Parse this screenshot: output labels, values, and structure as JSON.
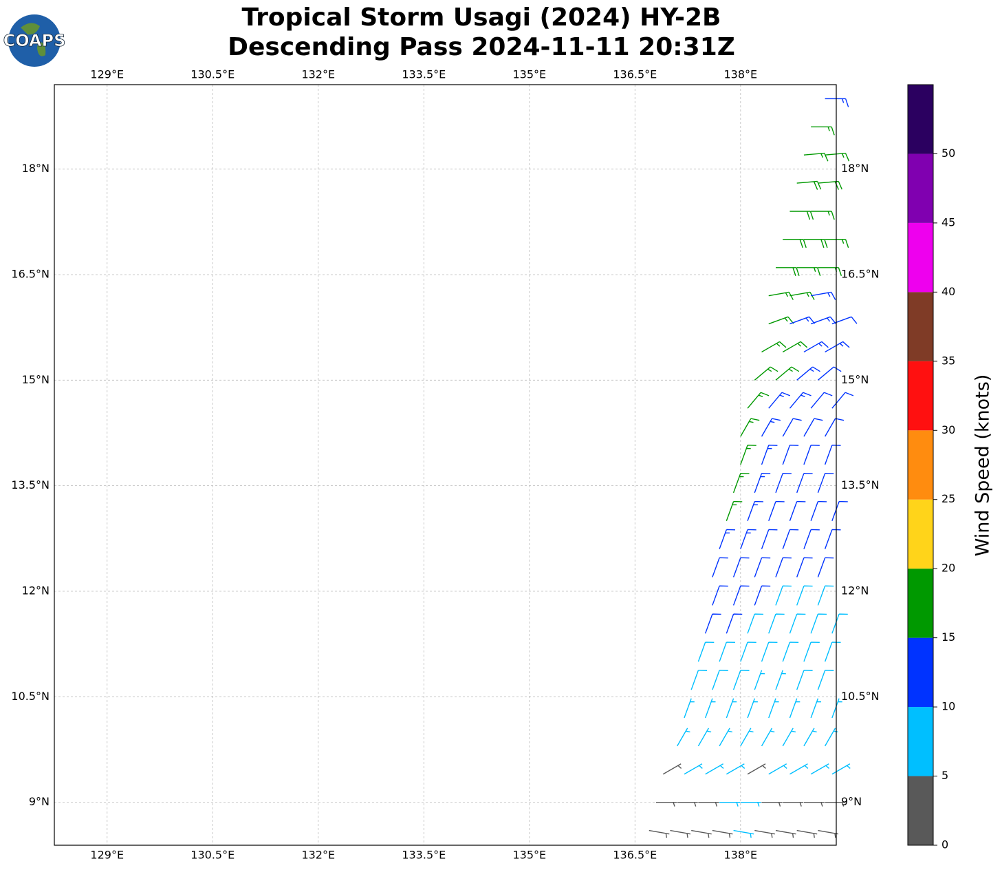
{
  "chart_data": {
    "type": "barb",
    "title": "Tropical Storm Usagi (2024) HY-2B",
    "subtitle": "Descending Pass 2024-11-11 20:31Z",
    "logo_text": "COAPS",
    "xlim": [
      128.25,
      139.36
    ],
    "ylim": [
      8.39,
      19.2
    ],
    "xticks": [
      {
        "value": 129,
        "label": "129°E"
      },
      {
        "value": 130.5,
        "label": "130.5°E"
      },
      {
        "value": 132,
        "label": "132°E"
      },
      {
        "value": 133.5,
        "label": "133.5°E"
      },
      {
        "value": 135,
        "label": "135°E"
      },
      {
        "value": 136.5,
        "label": "136.5°E"
      },
      {
        "value": 138,
        "label": "138°E"
      }
    ],
    "yticks": [
      {
        "value": 9,
        "label": "9°N"
      },
      {
        "value": 10.5,
        "label": "10.5°N"
      },
      {
        "value": 12,
        "label": "12°N"
      },
      {
        "value": 13.5,
        "label": "13.5°N"
      },
      {
        "value": 15,
        "label": "15°N"
      },
      {
        "value": 16.5,
        "label": "16.5°N"
      },
      {
        "value": 18,
        "label": "18°N"
      }
    ],
    "grid": true,
    "barbs": [
      {
        "lat": 19.0,
        "direction": 90,
        "lon": [
          139.2
        ],
        "speed": [
          13
        ]
      },
      {
        "lat": 18.6,
        "direction": 90,
        "lon": [
          139.0
        ],
        "speed": [
          17
        ]
      },
      {
        "lat": 18.2,
        "direction": 85,
        "lon": [
          138.9,
          139.2
        ],
        "speed": [
          17,
          17
        ]
      },
      {
        "lat": 17.8,
        "direction": 85,
        "lon": [
          138.8,
          139.1
        ],
        "speed": [
          18,
          18
        ]
      },
      {
        "lat": 17.4,
        "direction": 90,
        "lon": [
          138.7,
          139.0
        ],
        "speed": [
          18,
          17
        ]
      },
      {
        "lat": 17.0,
        "direction": 90,
        "lon": [
          138.6,
          138.9,
          139.2
        ],
        "speed": [
          18,
          18,
          17
        ]
      },
      {
        "lat": 16.6,
        "direction": 90,
        "lon": [
          138.5,
          138.8,
          139.1
        ],
        "speed": [
          18,
          17,
          17
        ]
      },
      {
        "lat": 16.2,
        "direction": 80,
        "lon": [
          138.4,
          138.7,
          139.0
        ],
        "speed": [
          17,
          17,
          14
        ]
      },
      {
        "lat": 15.8,
        "direction": 70,
        "lon": [
          138.4,
          138.7,
          139.0,
          139.3
        ],
        "speed": [
          17,
          14,
          13,
          12
        ]
      },
      {
        "lat": 15.4,
        "direction": 60,
        "lon": [
          138.3,
          138.6,
          138.9,
          139.2
        ],
        "speed": [
          17,
          16,
          13,
          13
        ]
      },
      {
        "lat": 15.0,
        "direction": 50,
        "lon": [
          138.2,
          138.5,
          138.8,
          139.1
        ],
        "speed": [
          17,
          16,
          13,
          12
        ]
      },
      {
        "lat": 14.6,
        "direction": 40,
        "lon": [
          138.1,
          138.4,
          138.7,
          139.0,
          139.3
        ],
        "speed": [
          16,
          13,
          13,
          12,
          12
        ]
      },
      {
        "lat": 14.2,
        "direction": 30,
        "lon": [
          138.0,
          138.3,
          138.6,
          138.9,
          139.2
        ],
        "speed": [
          16,
          13,
          12,
          12,
          11
        ]
      },
      {
        "lat": 13.8,
        "direction": 20,
        "lon": [
          138.0,
          138.3,
          138.6,
          138.9,
          139.2
        ],
        "speed": [
          16,
          14,
          12,
          12,
          11
        ]
      },
      {
        "lat": 13.4,
        "direction": 20,
        "lon": [
          137.9,
          138.2,
          138.5,
          138.8,
          139.1
        ],
        "speed": [
          16,
          13,
          12,
          11,
          11
        ]
      },
      {
        "lat": 13.0,
        "direction": 20,
        "lon": [
          137.8,
          138.1,
          138.4,
          138.7,
          139.0,
          139.3
        ],
        "speed": [
          16,
          14,
          12,
          11,
          11,
          10
        ]
      },
      {
        "lat": 12.6,
        "direction": 20,
        "lon": [
          137.7,
          138.0,
          138.3,
          138.6,
          138.9,
          139.2
        ],
        "speed": [
          13,
          13,
          12,
          11,
          11,
          10
        ]
      },
      {
        "lat": 12.2,
        "direction": 20,
        "lon": [
          137.6,
          137.9,
          138.2,
          138.5,
          138.8,
          139.1
        ],
        "speed": [
          12,
          12,
          11,
          11,
          10,
          10
        ]
      },
      {
        "lat": 11.8,
        "direction": 20,
        "lon": [
          137.6,
          137.9,
          138.2,
          138.5,
          138.8,
          139.1
        ],
        "speed": [
          12,
          11,
          10,
          9,
          9,
          8
        ]
      },
      {
        "lat": 11.4,
        "direction": 20,
        "lon": [
          137.5,
          137.8,
          138.1,
          138.4,
          138.7,
          139.0,
          139.3
        ],
        "speed": [
          11,
          10,
          9,
          9,
          8,
          8,
          8
        ]
      },
      {
        "lat": 11.0,
        "direction": 20,
        "lon": [
          137.4,
          137.7,
          138.0,
          138.3,
          138.6,
          138.9,
          139.2
        ],
        "speed": [
          9,
          9,
          8,
          8,
          8,
          8,
          8
        ]
      },
      {
        "lat": 10.6,
        "direction": 20,
        "lon": [
          137.3,
          137.6,
          137.9,
          138.2,
          138.5,
          138.8,
          139.1
        ],
        "speed": [
          8,
          8,
          8,
          7,
          7,
          8,
          8
        ]
      },
      {
        "lat": 10.2,
        "direction": 20,
        "lon": [
          137.2,
          137.5,
          137.8,
          138.1,
          138.4,
          138.7,
          139.0,
          139.3
        ],
        "speed": [
          7,
          7,
          7,
          6,
          6,
          7,
          7,
          7
        ]
      },
      {
        "lat": 9.8,
        "direction": 30,
        "lon": [
          137.1,
          137.4,
          137.7,
          138.0,
          138.3,
          138.6,
          138.9,
          139.2
        ],
        "speed": [
          6,
          6,
          6,
          7,
          6,
          6,
          6,
          7
        ]
      },
      {
        "lat": 9.4,
        "direction": 60,
        "lon": [
          136.9,
          137.2,
          137.5,
          137.8,
          138.1,
          138.4,
          138.7,
          139.0,
          139.3
        ],
        "speed": [
          4,
          5,
          6,
          6,
          4,
          6,
          6,
          7,
          6
        ]
      },
      {
        "lat": 9.0,
        "direction": 90,
        "lon": [
          136.8,
          137.1,
          137.4,
          137.7,
          138.0,
          138.3,
          138.6,
          138.9,
          139.2
        ],
        "speed": [
          4,
          4,
          4,
          6,
          6,
          4,
          4,
          4,
          4
        ]
      },
      {
        "lat": 8.6,
        "direction": 100,
        "lon": [
          136.7,
          137.0,
          137.3,
          137.6,
          137.9,
          138.2,
          138.5,
          138.8,
          139.1
        ],
        "speed": [
          3,
          3,
          4,
          3,
          7,
          3,
          4,
          3,
          3
        ]
      }
    ],
    "colorbar": {
      "label": "Wind Speed (knots)",
      "levels": [
        0,
        5,
        10,
        15,
        20,
        25,
        30,
        35,
        40,
        45,
        50,
        55
      ],
      "colors": [
        "#595959",
        "#00bfff",
        "#0033ff",
        "#009900",
        "#ffd41a",
        "#ff8c0f",
        "#ff1010",
        "#7f3b26",
        "#ee00ee",
        "#8000b0",
        "#2b0060"
      ],
      "ticks": [
        0,
        5,
        10,
        15,
        20,
        25,
        30,
        35,
        40,
        45,
        50
      ]
    }
  }
}
